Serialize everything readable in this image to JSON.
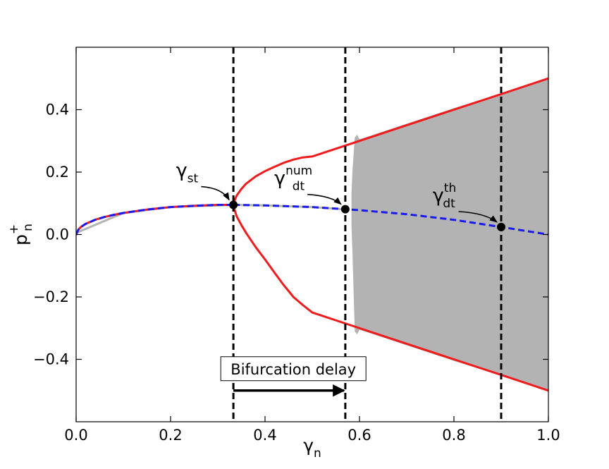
{
  "chart_data": {
    "type": "line",
    "xlabel": "γ",
    "xlabel_sub": "n",
    "ylabel": "p",
    "ylabel_sub": "n",
    "ylabel_sup": "+",
    "xlim": [
      0.0,
      1.0
    ],
    "ylim": [
      -0.6,
      0.6
    ],
    "xticks": [
      0.0,
      0.2,
      0.4,
      0.6,
      0.8,
      1.0
    ],
    "xtick_labels": [
      "0.0",
      "0.2",
      "0.4",
      "0.6",
      "0.8",
      "1.0"
    ],
    "yticks": [
      -0.4,
      -0.2,
      0.0,
      0.2,
      0.4
    ],
    "ytick_labels": [
      "−0.4",
      "−0.2",
      "0.0",
      "0.2",
      "0.4"
    ],
    "grid": false,
    "colors": {
      "branch": "#ee1c1c",
      "unstable": "#1a1aee",
      "numerical": "#b3b3b3",
      "marker": "#000000"
    },
    "series": [
      {
        "style": "upper-branch",
        "x": [
          0.333,
          0.336,
          0.34,
          0.35,
          0.36,
          0.38,
          0.4,
          0.42,
          0.44,
          0.46,
          0.48,
          0.5,
          0.6,
          0.7,
          0.8,
          0.9,
          1.0
        ],
        "y": [
          0.095,
          0.11,
          0.125,
          0.146,
          0.163,
          0.186,
          0.203,
          0.217,
          0.23,
          0.24,
          0.247,
          0.25,
          0.3,
          0.35,
          0.4,
          0.45,
          0.5
        ]
      },
      {
        "style": "lower-branch",
        "x": [
          0.333,
          0.336,
          0.34,
          0.35,
          0.36,
          0.38,
          0.4,
          0.42,
          0.44,
          0.46,
          0.48,
          0.5,
          0.6,
          0.7,
          0.8,
          0.9,
          1.0
        ],
        "y": [
          0.095,
          0.077,
          0.058,
          0.03,
          0.005,
          -0.04,
          -0.08,
          -0.122,
          -0.163,
          -0.2,
          -0.226,
          -0.25,
          -0.3,
          -0.35,
          -0.4,
          -0.45,
          -0.5
        ]
      },
      {
        "style": "stable-fixed-point",
        "x": [
          0.0,
          0.005,
          0.01,
          0.02,
          0.04,
          0.06,
          0.08,
          0.1,
          0.15,
          0.2,
          0.25,
          0.3,
          0.333
        ],
        "y": [
          0.0,
          0.016,
          0.024,
          0.034,
          0.047,
          0.056,
          0.063,
          0.069,
          0.08,
          0.088,
          0.092,
          0.095,
          0.095
        ]
      },
      {
        "style": "unstable-fixed-point",
        "x": [
          0.333,
          0.4,
          0.5,
          0.57,
          0.6,
          0.7,
          0.8,
          0.9,
          1.0
        ],
        "y": [
          0.095,
          0.093,
          0.088,
          0.081,
          0.078,
          0.065,
          0.047,
          0.024,
          0.0
        ]
      },
      {
        "style": "numerical-trace",
        "x": [
          0.0,
          0.1,
          0.2,
          0.333,
          0.4,
          0.5,
          0.57
        ],
        "y": [
          0.005,
          0.069,
          0.088,
          0.095,
          0.093,
          0.088,
          0.081
        ]
      }
    ],
    "numerical_band": {
      "x": [
        0.583,
        0.585,
        0.59,
        0.595,
        0.6,
        0.65,
        0.7,
        0.8,
        0.9,
        1.0
      ],
      "upper": [
        0.13,
        0.2,
        0.31,
        0.32,
        0.305,
        0.33,
        0.355,
        0.405,
        0.452,
        0.5
      ],
      "lower": [
        0.03,
        -0.05,
        -0.31,
        -0.32,
        -0.305,
        -0.33,
        -0.355,
        -0.405,
        -0.452,
        -0.5
      ]
    },
    "vlines": [
      0.333,
      0.57,
      0.9
    ],
    "markers": [
      {
        "x": 0.333,
        "y": 0.095
      },
      {
        "x": 0.57,
        "y": 0.081
      },
      {
        "x": 0.9,
        "y": 0.024
      }
    ],
    "annotations": [
      {
        "base": "γ",
        "sub": "st",
        "sup": "",
        "x": 0.235,
        "y": 0.185,
        "arrow_x": 0.333,
        "arrow_y": 0.095
      },
      {
        "base": "γ",
        "sub": "dt",
        "sup": "num",
        "x": 0.46,
        "y": 0.16,
        "arrow_x": 0.57,
        "arrow_y": 0.081
      },
      {
        "base": "γ",
        "sub": "dt",
        "sup": "th",
        "x": 0.78,
        "y": 0.105,
        "arrow_x": 0.9,
        "arrow_y": 0.024
      }
    ],
    "delay": {
      "label": "Bifurcation delay",
      "x_start": 0.333,
      "x_end": 0.57,
      "y": -0.5,
      "label_x": 0.46,
      "label_y": -0.43
    }
  }
}
